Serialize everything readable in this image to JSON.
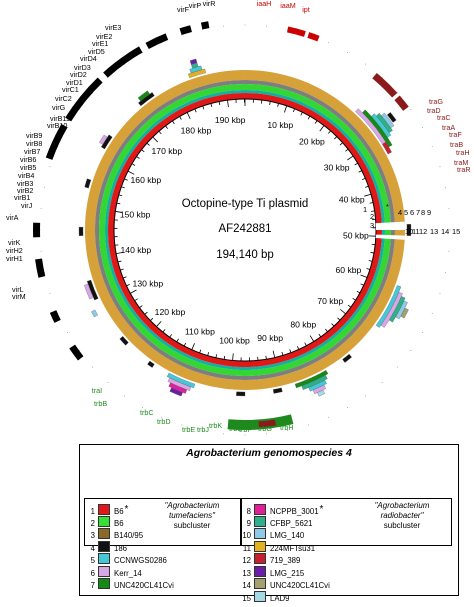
{
  "map": {
    "title": "Octopine-type Ti plasmid",
    "accession": "AF242881",
    "size": "194,140 bp",
    "total_kbp": 194.14,
    "tick_labels": [
      "10 kbp",
      "20 kbp",
      "30 kbp",
      "40 kbp",
      "50 kbp",
      "60 kbp",
      "70 kbp",
      "80 kbp",
      "90 kbp",
      "100 kbp",
      "110 kbp",
      "120 kbp",
      "130 kbp",
      "140 kbp",
      "150 kbp",
      "160 kbp",
      "170 kbp",
      "180 kbp",
      "190 kbp"
    ],
    "ring_colors": [
      "#d7a13a",
      "#7e7e7e",
      "#33d633",
      "#11b0a0",
      "#e01818"
    ],
    "gene_groups": [
      {
        "name": "vir",
        "color": "#000000",
        "genes": [
          "virF",
          "virP",
          "virR",
          "virE3",
          "virE2",
          "virE1",
          "virD5",
          "virD4",
          "virD3",
          "virD2",
          "virD1",
          "virC1",
          "virC2",
          "virG",
          "virB11",
          "virB10",
          "virB9",
          "virB8",
          "virB7",
          "virB6",
          "virB5",
          "virB4",
          "virB3",
          "virB2",
          "virB1",
          "virJ",
          "virA",
          "virK",
          "virH2",
          "virH1",
          "virL",
          "virM"
        ]
      },
      {
        "name": "oncogenic",
        "color": "#cc0000",
        "genes": [
          "iaaH",
          "iaaM",
          "ipt"
        ]
      },
      {
        "name": "tra",
        "color": "#8b1a1a",
        "genes": [
          "traG",
          "traD",
          "traC",
          "traA",
          "traF",
          "traB",
          "traH",
          "traM",
          "traR"
        ]
      },
      {
        "name": "trb",
        "color": "#1e8a1e",
        "genes": [
          "traI",
          "trbB",
          "trbC",
          "trbD",
          "trbE",
          "trbJ",
          "trbK",
          "trbL",
          "trbF",
          "trbG",
          "trbH"
        ]
      }
    ],
    "outer_markers": [
      "1",
      "2",
      "3",
      "4",
      "5",
      "6",
      "7",
      "8",
      "9",
      "10",
      "11",
      "12",
      "13",
      "14",
      "15"
    ],
    "marker_1_2_star": "*"
  },
  "legend": {
    "title": "Agrobacterium genomospecies 4",
    "left_entries": [
      {
        "num": "1",
        "name": "B6",
        "color": "#e01818",
        "star": "*"
      },
      {
        "num": "2",
        "name": "B6",
        "color": "#33e033",
        "star": ""
      },
      {
        "num": "3",
        "name": "B140/95",
        "color": "#8a6a2a",
        "star": ""
      },
      {
        "num": "4",
        "name": "186",
        "color": "#111111",
        "star": ""
      },
      {
        "num": "5",
        "name": "CCNWGS0286",
        "color": "#44c8d8",
        "star": ""
      },
      {
        "num": "6",
        "name": "Kerr_14",
        "color": "#d9a6e6",
        "star": ""
      },
      {
        "num": "7",
        "name": "UNC420CL41Cvi",
        "color": "#168a16",
        "star": ""
      }
    ],
    "right_entries": [
      {
        "num": "8",
        "name": "NCPPB_3001",
        "color": "#e0209a",
        "star": "*"
      },
      {
        "num": "9",
        "name": "CFBP_5621",
        "color": "#2eb088",
        "star": ""
      },
      {
        "num": "10",
        "name": "LMG_140",
        "color": "#8fc9e8",
        "star": ""
      },
      {
        "num": "11",
        "name": "224MFTsu31",
        "color": "#e2b020",
        "star": ""
      },
      {
        "num": "12",
        "name": "719_389",
        "color": "#c62030",
        "star": ""
      },
      {
        "num": "13",
        "name": "LMG_215",
        "color": "#6a1ea8",
        "star": ""
      },
      {
        "num": "14",
        "name": "UNC420CL41Cvi",
        "color": "#a4a070",
        "star": ""
      },
      {
        "num": "15",
        "name": "LAD9",
        "color": "#a6d8e6",
        "star": ""
      }
    ],
    "subcluster_left": "\"Agrobacterium tumefaciens\" subcluster",
    "subcluster_left_species": "\"Agrobacterium",
    "subcluster_left_species2": "tumefaciens\"",
    "subcluster_left_word": "subcluster",
    "subcluster_right_species": "\"Agrobacterium",
    "subcluster_right_species2": "radiobacter\"",
    "subcluster_right_word": "subcluster"
  }
}
